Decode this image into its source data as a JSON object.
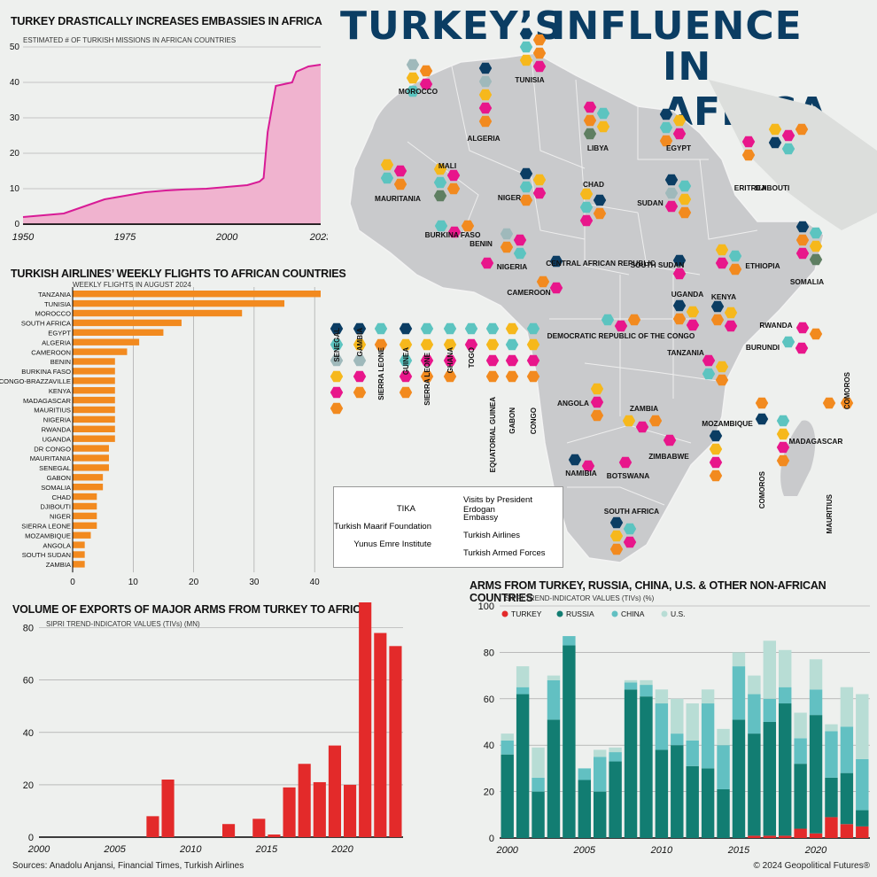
{
  "title": {
    "line1a": "TURKEY’S",
    "line1b": "INFLUENCE",
    "line2": "IN AFRICA"
  },
  "sources": "Sources: Anadolu Anjansi, Financial Times, Turkish Airlines",
  "copyright": "© 2024 Geopolitical Futures®",
  "colors": {
    "tika": "#0b3d63",
    "erdogan": "#f6b81c",
    "embassy": "#e8168b",
    "maarif": "#5cc4c0",
    "airlines": "#f28a1f",
    "yunus": "#9fb9bb",
    "armed": "#5f7f62",
    "map": "#c9cacc",
    "pink": "#f0b3cf",
    "lineMagenta": "#d81b96",
    "bar": "#f28a1f",
    "red": "#e32a2a",
    "russia": "#127d72",
    "china": "#62c0c2",
    "us": "#b8ddd5"
  },
  "chart_data": [
    {
      "id": "embassies",
      "type": "area",
      "title": "TURKEY DRASTICALLY INCREASES EMBASSIES IN AFRICA",
      "subtitle": "ESTIMATED # OF TURKISH MISSIONS IN AFRICAN COUNTRIES",
      "xlim": [
        1950,
        2023
      ],
      "ylim": [
        0,
        50
      ],
      "xticks": [
        "1950",
        "1975",
        "2000",
        "2023"
      ],
      "yticks": [
        "50",
        "40",
        "30",
        "20",
        "10",
        "0"
      ],
      "x": [
        1950,
        1955,
        1960,
        1965,
        1970,
        1975,
        1980,
        1985,
        1990,
        1995,
        2000,
        2005,
        2008,
        2009,
        2010,
        2012,
        2014,
        2016,
        2017,
        2019,
        2020,
        2023
      ],
      "values": [
        2,
        2.5,
        3,
        5,
        7,
        8,
        9,
        9.5,
        9.8,
        10,
        10.5,
        11,
        12,
        13,
        26,
        39,
        39.5,
        40,
        43,
        44,
        44.5,
        45
      ]
    },
    {
      "id": "flights",
      "type": "bar",
      "orientation": "horizontal",
      "title": "TURKISH AIRLINES’ WEEKLY FLIGHTS TO AFRICAN COUNTRIES",
      "subtitle": "WEEKLY FLIGHTS IN AUGUST 2024",
      "xlim": [
        0,
        41
      ],
      "xticks": [
        "0",
        "10",
        "20",
        "30",
        "40"
      ],
      "categories": [
        "TANZANIA",
        "TUNISIA",
        "MOROCCO",
        "SOUTH AFRICA",
        "EGYPT",
        "ALGERIA",
        "CAMEROON",
        "BENIN",
        "BURKINA FASO",
        "CONGO-BRAZZAVILLE",
        "KENYA",
        "MADAGASCAR",
        "MAURITIUS",
        "NIGERIA",
        "RWANDA",
        "UGANDA",
        "DR CONGO",
        "MAURITANIA",
        "SENEGAL",
        "GABON",
        "SOMALIA",
        "CHAD",
        "DJIBOUTI",
        "NIGER",
        "SIERRA LEONE",
        "MOZAMBIQUE",
        "ANGOLA",
        "SOUTH SUDAN",
        "ZAMBIA"
      ],
      "values": [
        41,
        35,
        28,
        18,
        15,
        11,
        9,
        7,
        7,
        7,
        7,
        7,
        7,
        7,
        7,
        7,
        6,
        6,
        6,
        5,
        5,
        4,
        4,
        4,
        4,
        3,
        2,
        2,
        2
      ]
    },
    {
      "id": "exports",
      "type": "bar",
      "title": "VOLUME OF EXPORTS OF MAJOR ARMS FROM TURKEY TO AFRICA",
      "subtitle": "SIPRI TREND-INDICATOR VALUES (TIVs) (MN)",
      "ylim": [
        0,
        88
      ],
      "yticks": [
        "80",
        "60",
        "40",
        "20",
        "0"
      ],
      "xticks": [
        "2000",
        "2005",
        "2010",
        "2015",
        "2020"
      ],
      "x": [
        2000,
        2001,
        2002,
        2003,
        2004,
        2005,
        2006,
        2007,
        2008,
        2009,
        2010,
        2011,
        2012,
        2013,
        2014,
        2015,
        2016,
        2017,
        2018,
        2019,
        2020,
        2021,
        2022,
        2023
      ],
      "values": [
        0,
        0,
        0,
        0,
        0,
        0,
        0,
        8,
        22,
        0,
        0,
        0,
        5,
        0,
        7,
        1,
        19,
        28,
        21,
        35,
        20,
        90,
        78,
        73
      ]
    },
    {
      "id": "arms-share",
      "type": "bar",
      "stacked": true,
      "title": "ARMS FROM TURKEY, RUSSIA, CHINA, U.S. & OTHER NON-AFRICAN COUNTRIES",
      "subtitle": "SIPRI TREND-INDICATOR VALUES (TIVs) (%)",
      "ylim": [
        0,
        100
      ],
      "yticks": [
        "100",
        "80",
        "60",
        "40",
        "20",
        "0"
      ],
      "xticks": [
        "2000",
        "2005",
        "2010",
        "2015",
        "2020"
      ],
      "legend_position": "top-left",
      "x": [
        2000,
        2001,
        2002,
        2003,
        2004,
        2005,
        2006,
        2007,
        2008,
        2009,
        2010,
        2011,
        2012,
        2013,
        2014,
        2015,
        2016,
        2017,
        2018,
        2019,
        2020,
        2021,
        2022,
        2023
      ],
      "series": [
        {
          "name": "TURKEY",
          "color": "#e32a2a",
          "values": [
            0,
            0,
            0,
            0,
            0,
            0,
            0,
            0,
            0,
            0,
            0,
            0,
            0,
            0,
            0,
            0,
            1,
            1,
            1,
            4,
            2,
            9,
            6,
            5
          ]
        },
        {
          "name": "RUSSIA",
          "color": "#127d72",
          "values": [
            36,
            62,
            20,
            51,
            83,
            25,
            20,
            33,
            64,
            61,
            38,
            40,
            31,
            30,
            21,
            51,
            44,
            49,
            57,
            28,
            51,
            17,
            22,
            7
          ]
        },
        {
          "name": "CHINA",
          "color": "#62c0c2",
          "values": [
            6,
            3,
            6,
            17,
            4,
            5,
            15,
            4,
            3,
            5,
            20,
            5,
            11,
            28,
            19,
            23,
            17,
            10,
            7,
            11,
            11,
            20,
            20,
            22
          ]
        },
        {
          "name": "U.S.",
          "color": "#b8ddd5",
          "values": [
            3,
            9,
            13,
            2,
            0,
            0,
            3,
            2,
            1,
            2,
            6,
            15,
            16,
            6,
            7,
            6,
            8,
            25,
            16,
            11,
            13,
            3,
            17,
            28
          ]
        }
      ]
    }
  ],
  "legend": {
    "tika": "TIKA",
    "maarif": "Turkish Maarif Foundation",
    "yunus": "Yunus Emre Institute",
    "erdogan": "Visits by President Erdogan",
    "embassy": "Embassy",
    "airlines": "Turkish Airlines",
    "armed": "Turkish Armed Forces"
  },
  "countries": [
    {
      "name": "MOROCCO",
      "hex": [
        "yunus",
        "airlines",
        "erdogan",
        "embassy",
        "maarif"
      ]
    },
    {
      "name": "TUNISIA",
      "hex": [
        "tika",
        "airlines",
        "maarif",
        "airlines",
        "erdogan",
        "embassy"
      ]
    },
    {
      "name": "ALGERIA",
      "hex": [
        "tika",
        "yunus",
        "erdogan",
        "embassy",
        "airlines"
      ]
    },
    {
      "name": "LIBYA",
      "hex": [
        "embassy",
        "maarif",
        "airlines",
        "erdogan",
        "armed"
      ]
    },
    {
      "name": "EGYPT",
      "hex": [
        "tika",
        "erdogan",
        "maarif",
        "embassy",
        "airlines"
      ]
    },
    {
      "name": "ERITREA",
      "hex": [
        "embassy",
        "airlines"
      ]
    },
    {
      "name": "DJIBOUTI",
      "hex": [
        "erdogan",
        "embassy",
        "airlines",
        "tika",
        "maarif"
      ]
    },
    {
      "name": "MALI",
      "hex": [
        "erdogan",
        "embassy",
        "maarif",
        "airlines",
        "armed"
      ]
    },
    {
      "name": "MAURITANIA",
      "hex": [
        "erdogan",
        "embassy",
        "maarif",
        "airlines"
      ]
    },
    {
      "name": "NIGER",
      "hex": [
        "tika",
        "erdogan",
        "maarif",
        "embassy",
        "airlines"
      ]
    },
    {
      "name": "CHAD",
      "hex": [
        "erdogan",
        "tika",
        "maarif",
        "airlines",
        "embassy"
      ]
    },
    {
      "name": "SUDAN",
      "hex": [
        "tika",
        "maarif",
        "yunus",
        "erdogan",
        "embassy",
        "airlines"
      ]
    },
    {
      "name": "BURKINA FASO",
      "hex": [
        "maarif",
        "embassy",
        "airlines"
      ]
    },
    {
      "name": "NIGERIA",
      "hex": [
        "yunus",
        "embassy",
        "airlines",
        "maarif"
      ]
    },
    {
      "name": "BENIN",
      "hex": [
        "embassy"
      ]
    },
    {
      "name": "ETHIOPIA",
      "hex": [
        "erdogan",
        "maarif",
        "embassy",
        "airlines"
      ]
    },
    {
      "name": "SOMALIA",
      "hex": [
        "tika",
        "maarif",
        "airlines",
        "erdogan",
        "embassy",
        "armed"
      ]
    },
    {
      "name": "SOUTH SUDAN",
      "hex": [
        "tika",
        "embassy"
      ]
    },
    {
      "name": "CENTRAL AFRICAN REPUBLIC",
      "hex": [
        "tika"
      ]
    },
    {
      "name": "CAMEROON",
      "hex": [
        "airlines",
        "embassy"
      ]
    },
    {
      "name": "UGANDA",
      "hex": [
        "tika",
        "erdogan",
        "airlines",
        "embassy"
      ]
    },
    {
      "name": "KENYA",
      "hex": [
        "tika",
        "erdogan",
        "airlines",
        "embassy"
      ]
    },
    {
      "name": "RWANDA",
      "hex": [
        "embassy",
        "airlines"
      ]
    },
    {
      "name": "BURUNDI",
      "hex": [
        "maarif",
        "embassy"
      ]
    },
    {
      "name": "DEMOCRATIC REPUBLIC OF THE CONGO",
      "hex": [
        "maarif",
        "embassy",
        "airlines"
      ]
    },
    {
      "name": "TANZANIA",
      "hex": [
        "embassy",
        "erdogan",
        "maarif",
        "airlines"
      ]
    },
    {
      "name": "ANGOLA",
      "hex": [
        "erdogan",
        "embassy",
        "airlines"
      ]
    },
    {
      "name": "ZAMBIA",
      "hex": [
        "erdogan",
        "embassy",
        "airlines"
      ]
    },
    {
      "name": "ZIMBABWE",
      "hex": [
        "embassy"
      ]
    },
    {
      "name": "MOZAMBIQUE",
      "hex": [
        "tika",
        "erdogan",
        "embassy",
        "airlines"
      ]
    },
    {
      "name": "MADAGASCAR",
      "hex": [
        "maarif",
        "erdogan",
        "embassy",
        "airlines"
      ]
    },
    {
      "name": "NAMIBIA",
      "hex": [
        "tika",
        "embassy"
      ]
    },
    {
      "name": "BOTSWANA",
      "hex": [
        "embassy"
      ]
    },
    {
      "name": "SOUTH AFRICA",
      "hex": [
        "tika",
        "maarif",
        "erdogan",
        "embassy",
        "airlines"
      ]
    },
    {
      "name": "SENEGAL",
      "hex": [
        "tika",
        "maarif",
        "yunus",
        "erdogan",
        "embassy",
        "airlines"
      ]
    },
    {
      "name": "GAMBIA",
      "hex": [
        "tika",
        "erdogan",
        "yunus",
        "embassy",
        "airlines"
      ]
    },
    {
      "name": "SIERRA LEONE",
      "hex": [
        "maarif",
        "airlines"
      ]
    },
    {
      "name": "GUINEA",
      "hex": [
        "tika",
        "erdogan",
        "maarif",
        "embassy",
        "airlines"
      ]
    },
    {
      "name": "SIERRA LEONE",
      "hex": [
        "maarif",
        "erdogan",
        "embassy",
        "airlines"
      ]
    },
    {
      "name": "GHANA",
      "hex": [
        "maarif",
        "erdogan",
        "embassy",
        "airlines"
      ]
    },
    {
      "name": "TOGO",
      "hex": [
        "maarif",
        "embassy"
      ]
    },
    {
      "name": "EQUATORIAL GUINEA",
      "hex": [
        "maarif",
        "erdogan",
        "embassy",
        "airlines"
      ]
    },
    {
      "name": "GABON",
      "hex": [
        "erdogan",
        "maarif",
        "embassy",
        "airlines"
      ]
    },
    {
      "name": "CONGO",
      "hex": [
        "maarif",
        "erdogan",
        "embassy",
        "airlines"
      ]
    },
    {
      "name": "COMOROS",
      "hex": [
        "airlines"
      ]
    },
    {
      "name": "COMOROS",
      "hex": [
        "airlines",
        "tika"
      ]
    },
    {
      "name": "MAURITIUS",
      "hex": [
        "airlines"
      ]
    }
  ]
}
